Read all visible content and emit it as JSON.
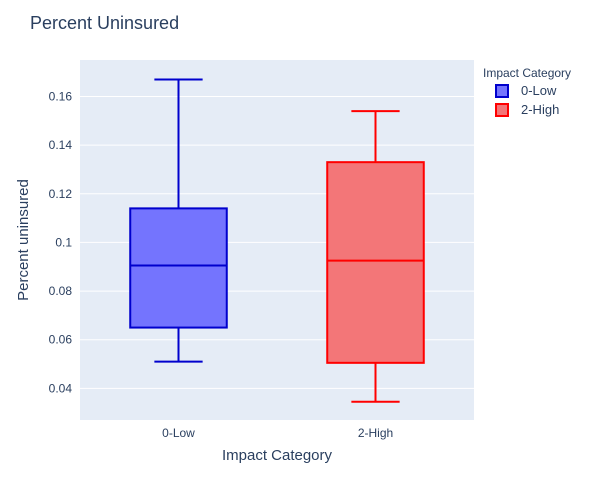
{
  "chart_data": {
    "type": "box",
    "title": "Percent Uninsured",
    "xlabel": "Impact Category",
    "ylabel": "Percent uninsured",
    "ylim": [
      0.027,
      0.175
    ],
    "yticks": [
      0.04,
      0.06,
      0.08,
      0.1,
      0.12,
      0.14,
      0.16
    ],
    "ytick_labels": [
      "0.04",
      "0.06",
      "0.08",
      "0.1",
      "0.12",
      "0.14",
      "0.16"
    ],
    "grid": true,
    "legend": {
      "title": "Impact Category",
      "placement": "top-right"
    },
    "categories": [
      "0-Low",
      "2-High"
    ],
    "series": [
      {
        "name": "0-Low",
        "color": "#0000cd",
        "fill": "#7474fe",
        "lowerfence": 0.051,
        "q1": 0.065,
        "median": 0.0905,
        "q3": 0.114,
        "upperfence": 0.167
      },
      {
        "name": "2-High",
        "color": "#ff0000",
        "fill": "#f37678",
        "lowerfence": 0.0345,
        "q1": 0.0505,
        "median": 0.0925,
        "q3": 0.133,
        "upperfence": 0.154
      }
    ]
  }
}
